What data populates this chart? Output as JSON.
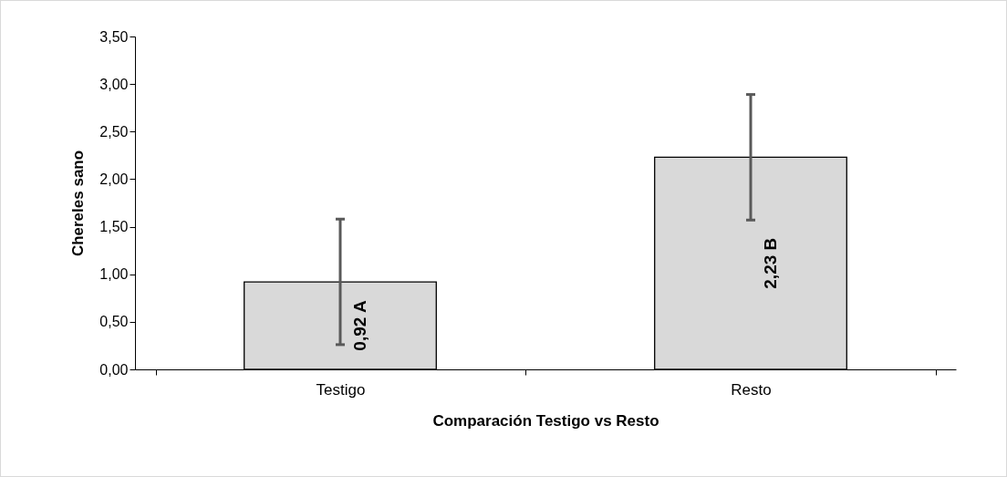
{
  "chart_data": {
    "type": "bar",
    "xlabel": "Comparación Testigo vs Resto",
    "ylabel": "Chereles sano",
    "categories": [
      "Testigo",
      "Resto"
    ],
    "series": [
      {
        "color": "#d9d9d9",
        "values": [
          0.92,
          2.23
        ],
        "errors": [
          0.66,
          0.66
        ],
        "value_labels": [
          "0,92 A",
          "2,23 B"
        ]
      }
    ],
    "ylim": [
      0,
      3.5
    ],
    "yticks": [
      {
        "value": 0,
        "label": "0,00"
      },
      {
        "value": 0.5,
        "label": "0,50"
      },
      {
        "value": 1,
        "label": "1,00"
      },
      {
        "value": 1.5,
        "label": "1,50"
      },
      {
        "value": 2,
        "label": "2,00"
      },
      {
        "value": 2.5,
        "label": "2,50"
      },
      {
        "value": 3,
        "label": "3,00"
      },
      {
        "value": 3.5,
        "label": "3,50"
      }
    ],
    "grid": false
  }
}
